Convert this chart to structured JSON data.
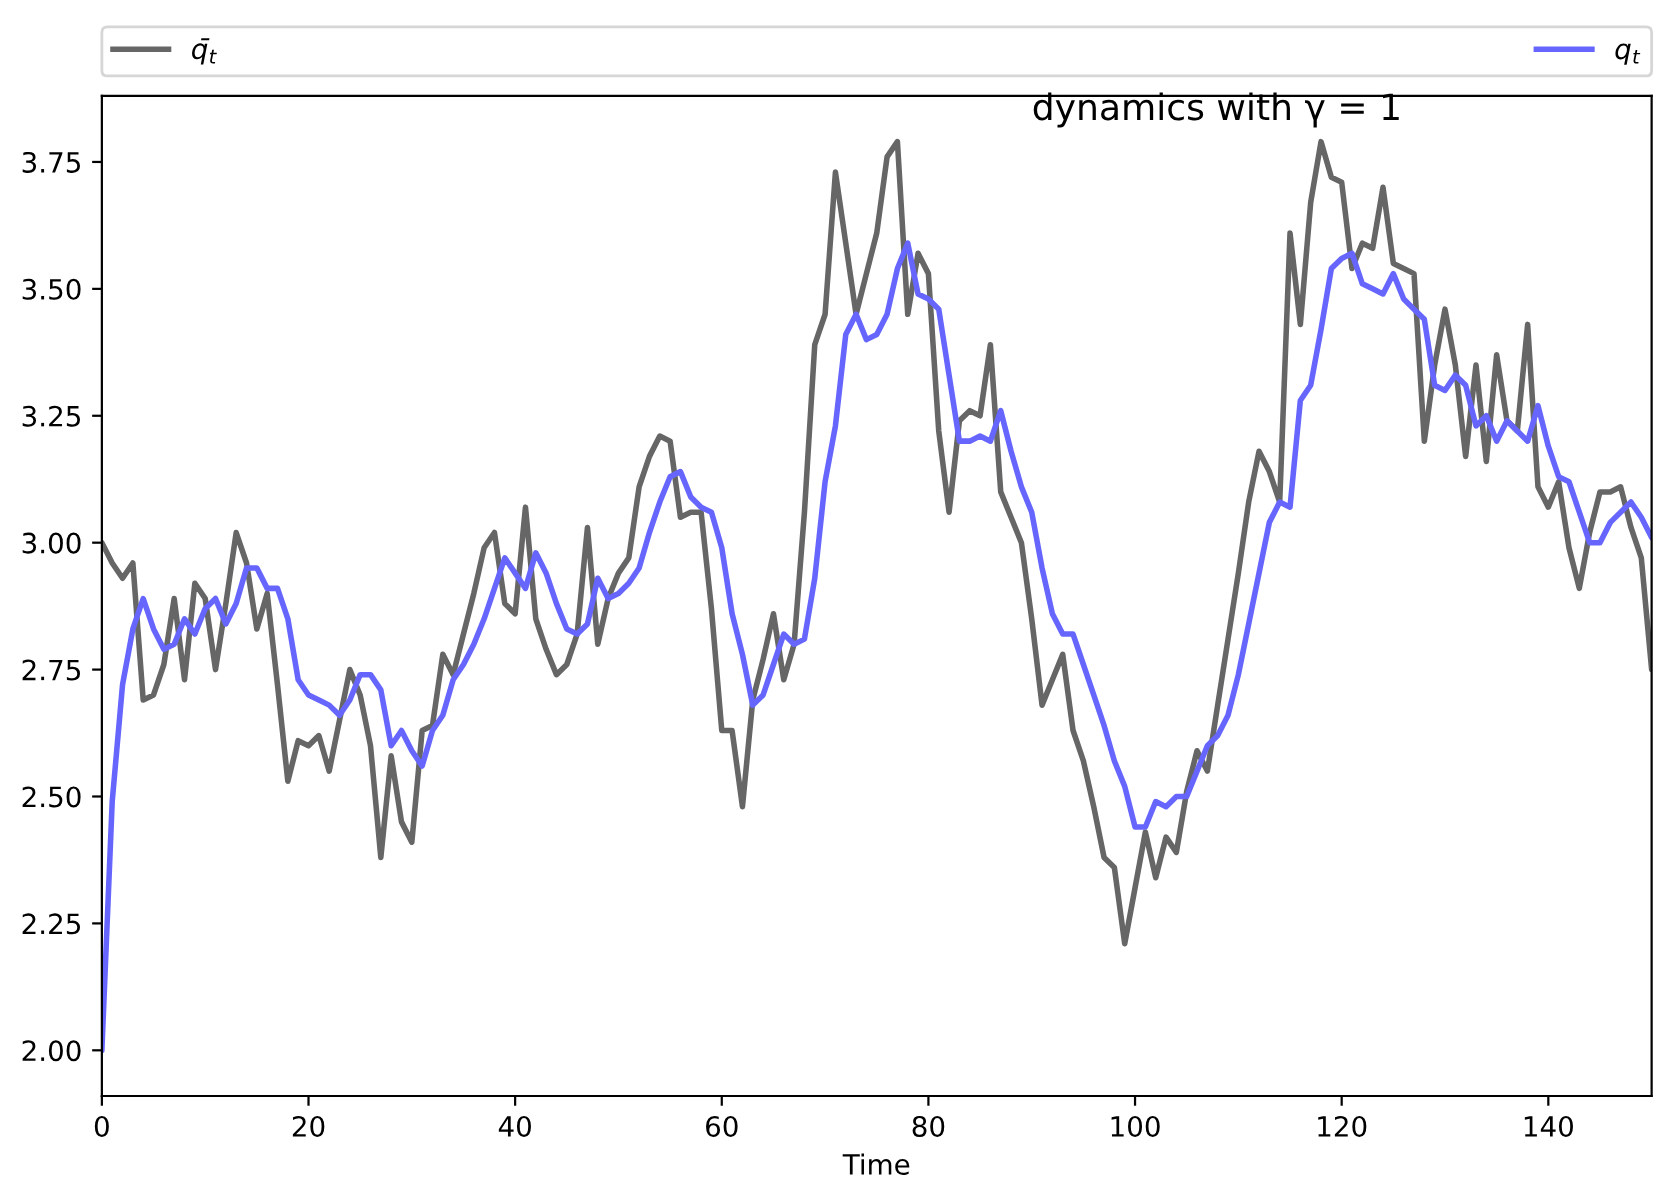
{
  "chart_data": {
    "type": "line",
    "annotations": [
      "dynamics with γ = 1"
    ],
    "xlabel": "Time",
    "x": [
      0,
      1,
      2,
      3,
      4,
      5,
      6,
      7,
      8,
      9,
      10,
      11,
      12,
      13,
      14,
      15,
      16,
      17,
      18,
      19,
      20,
      21,
      22,
      23,
      24,
      25,
      26,
      27,
      28,
      29,
      30,
      31,
      32,
      33,
      34,
      35,
      36,
      37,
      38,
      39,
      40,
      41,
      42,
      43,
      44,
      45,
      46,
      47,
      48,
      49,
      50,
      51,
      52,
      53,
      54,
      55,
      56,
      57,
      58,
      59,
      60,
      61,
      62,
      63,
      64,
      65,
      66,
      67,
      68,
      69,
      70,
      71,
      72,
      73,
      74,
      75,
      76,
      77,
      78,
      79,
      80,
      81,
      82,
      83,
      84,
      85,
      86,
      87,
      88,
      89,
      90,
      91,
      92,
      93,
      94,
      95,
      96,
      97,
      98,
      99,
      100,
      101,
      102,
      103,
      104,
      105,
      106,
      107,
      108,
      109,
      110,
      111,
      112,
      113,
      114,
      115,
      116,
      117,
      118,
      119,
      120,
      121,
      122,
      123,
      124,
      125,
      126,
      127,
      128,
      129,
      130,
      131,
      132,
      133,
      134,
      135,
      136,
      137,
      138,
      139,
      140,
      141,
      142,
      143,
      144,
      145,
      146,
      147,
      148,
      149,
      150
    ],
    "series": [
      {
        "name": "q̄$_{t}$",
        "color": "#666666",
        "values": [
          3.0,
          2.96,
          2.93,
          2.96,
          2.69,
          2.7,
          2.76,
          2.89,
          2.73,
          2.92,
          2.89,
          2.75,
          2.88,
          3.02,
          2.96,
          2.83,
          2.9,
          2.72,
          2.53,
          2.61,
          2.6,
          2.62,
          2.55,
          2.65,
          2.75,
          2.7,
          2.6,
          2.38,
          2.58,
          2.45,
          2.41,
          2.63,
          2.64,
          2.78,
          2.74,
          2.82,
          2.9,
          2.99,
          3.02,
          2.88,
          2.86,
          3.07,
          2.85,
          2.79,
          2.74,
          2.76,
          2.82,
          3.03,
          2.8,
          2.89,
          2.94,
          2.97,
          3.11,
          3.17,
          3.21,
          3.2,
          3.05,
          3.06,
          3.06,
          2.87,
          2.63,
          2.63,
          2.48,
          2.69,
          2.77,
          2.86,
          2.73,
          2.8,
          3.06,
          3.39,
          3.45,
          3.73,
          3.59,
          3.45,
          3.53,
          3.61,
          3.76,
          3.79,
          3.45,
          3.57,
          3.53,
          3.22,
          3.06,
          3.24,
          3.26,
          3.25,
          3.39,
          3.1,
          3.05,
          3.0,
          2.85,
          2.68,
          2.73,
          2.78,
          2.63,
          2.57,
          2.48,
          2.38,
          2.36,
          2.21,
          2.32,
          2.43,
          2.34,
          2.42,
          2.39,
          2.51,
          2.59,
          2.55,
          2.68,
          2.81,
          2.94,
          3.08,
          3.18,
          3.14,
          3.08,
          3.61,
          3.43,
          3.67,
          3.79,
          3.72,
          3.71,
          3.54,
          3.59,
          3.58,
          3.7,
          3.55,
          3.54,
          3.53,
          3.2,
          3.35,
          3.46,
          3.35,
          3.17,
          3.35,
          3.16,
          3.37,
          3.24,
          3.22,
          3.43,
          3.11,
          3.07,
          3.12,
          2.99,
          2.91,
          3.02,
          3.1,
          3.1,
          3.11,
          3.03,
          2.97,
          2.75
        ]
      },
      {
        "name": "q$_{t}$",
        "color": "#6666ff",
        "values": [
          2.0,
          2.49,
          2.72,
          2.83,
          2.89,
          2.83,
          2.79,
          2.8,
          2.85,
          2.82,
          2.87,
          2.89,
          2.84,
          2.88,
          2.95,
          2.95,
          2.91,
          2.91,
          2.85,
          2.73,
          2.7,
          2.69,
          2.68,
          2.66,
          2.69,
          2.74,
          2.74,
          2.71,
          2.6,
          2.63,
          2.59,
          2.56,
          2.63,
          2.66,
          2.73,
          2.76,
          2.8,
          2.85,
          2.91,
          2.97,
          2.94,
          2.91,
          2.98,
          2.94,
          2.88,
          2.83,
          2.82,
          2.84,
          2.93,
          2.89,
          2.9,
          2.92,
          2.95,
          3.02,
          3.08,
          3.13,
          3.14,
          3.09,
          3.07,
          3.06,
          2.99,
          2.86,
          2.78,
          2.68,
          2.7,
          2.76,
          2.82,
          2.8,
          2.81,
          2.93,
          3.12,
          3.23,
          3.41,
          3.45,
          3.4,
          3.41,
          3.45,
          3.54,
          3.59,
          3.49,
          3.48,
          3.46,
          3.33,
          3.2,
          3.2,
          3.21,
          3.2,
          3.26,
          3.18,
          3.11,
          3.06,
          2.95,
          2.86,
          2.82,
          2.82,
          2.76,
          2.7,
          2.64,
          2.57,
          2.52,
          2.44,
          2.44,
          2.49,
          2.48,
          2.5,
          2.5,
          2.55,
          2.6,
          2.62,
          2.66,
          2.74,
          2.84,
          2.94,
          3.04,
          3.08,
          3.07,
          3.28,
          3.31,
          3.42,
          3.54,
          3.56,
          3.57,
          3.51,
          3.5,
          3.49,
          3.53,
          3.48,
          3.46,
          3.44,
          3.31,
          3.3,
          3.33,
          3.31,
          3.23,
          3.25,
          3.2,
          3.24,
          3.22,
          3.2,
          3.27,
          3.19,
          3.13,
          3.12,
          3.06,
          3.0,
          3.0,
          3.04,
          3.06,
          3.08,
          3.05,
          3.01
        ]
      }
    ],
    "xlim": [
      0,
      150
    ],
    "xticks": [
      0,
      20,
      40,
      60,
      80,
      100,
      120,
      140
    ],
    "ylim": [
      1.91,
      3.88
    ],
    "yticks": [
      {
        "value": 2.0,
        "label": "2.00"
      },
      {
        "value": 2.25,
        "label": "2.25"
      },
      {
        "value": 2.5,
        "label": "2.50"
      },
      {
        "value": 2.75,
        "label": "2.75"
      },
      {
        "value": 3.0,
        "label": "3.00"
      },
      {
        "value": 3.25,
        "label": "3.25"
      },
      {
        "value": 3.5,
        "label": "3.50"
      },
      {
        "value": 3.75,
        "label": "3.75"
      }
    ],
    "legend": "top"
  }
}
